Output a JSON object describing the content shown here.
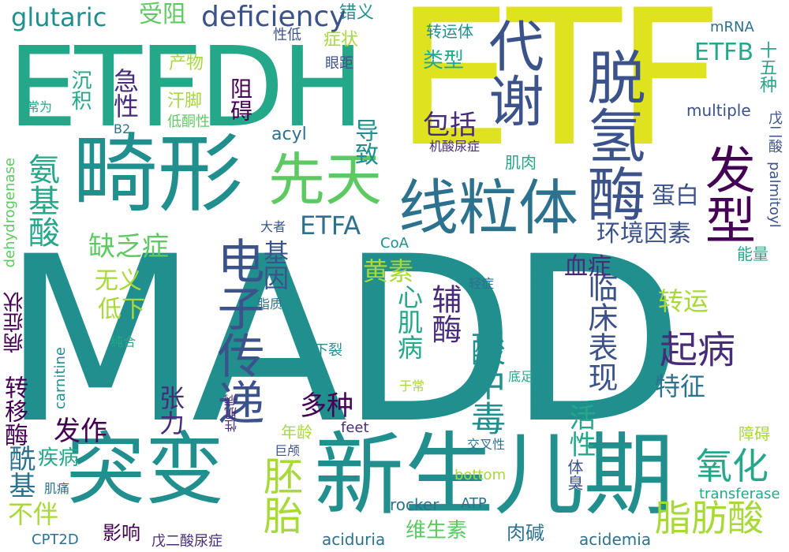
{
  "words": {
    "madd": "MADD",
    "etf": "ETF",
    "etfdh": "ETFDH",
    "jixing": "畸形",
    "xiantian": "先天",
    "xianlititi": "线粒体",
    "tuoqingmei": "脱氢酶",
    "daixie": "代谢",
    "fazuo_type": "发型",
    "tubian": "突变",
    "xinshengerqi": "新生儿期",
    "dianzichuandi": "电子传递",
    "anjisuan": "氨基酸",
    "suanzhongdu": "酸中毒",
    "qibing": "起病",
    "zhifangsuan": "脂肪酸",
    "yanghua": "氧化",
    "peitai": "胚胎",
    "xianxingbiaoxian": "临床表现",
    "xinjibing": "心肌病",
    "fumei": "辅酶",
    "huangsu": "黄素",
    "huanjing": "环境因素",
    "danbai": "蛋白",
    "xuezheng": "血症",
    "quefazheng": "缺乏症",
    "wuyi": "无义",
    "dixia": "低下",
    "jiyin": "基因",
    "baokuo": "包括",
    "daozhi": "导致",
    "jiroul": "肌肉",
    "leixing": "类型",
    "zhengzhuang": "症状",
    "shouzu": "受阻",
    "cuoyi": "错义",
    "deficiency": "deficiency",
    "glutaric": "glutaric",
    "etfb": "ETFB",
    "etfa": "ETFA",
    "multiple": "multiple",
    "acyl": "acyl",
    "zhuanyun": "转运",
    "zhuanyunti": "转运体",
    "tezheng": "特征",
    "huoxing": "活性",
    "duozhong": "多种",
    "fazuo": "发作",
    "zhangli": "张力",
    "xianji": "酰基",
    "buban": "不伴",
    "jibing": "疾病",
    "yingxiang": "影响",
    "weishengsu": "维生素",
    "rouj": "肉碱",
    "zhuanyimei": "转移酶",
    "bingzhengzhuang": "病症状",
    "dehydrogenase": "dehydrogenase",
    "carnitine": "carnitine",
    "palmitoyl": "palmitoyl",
    "wuersuan": "戊二酸",
    "shiwu": "十五种",
    "mrna": "mRNA",
    "nengliang": "能量",
    "zhangai": "障碍",
    "zhangai2": "阻碍",
    "chanwu": "产物",
    "yanju": "眼距",
    "hanjiao": "汗脚",
    "didongtixing": "低酮性",
    "jixing_acute": "急性",
    "chenji": "沉积",
    "changwei": "常为",
    "b2": "B2",
    "xingdi": "性低",
    "jisuanniaozheng": "机酸尿症",
    "dazhe": "大者",
    "coa": "CoA",
    "qingzheng": "轻症",
    "zhizhi": "脂质",
    "chunhe": "纯合",
    "xialie": "下裂",
    "yuchang": "于常",
    "dizu": "底足",
    "xingjibing": "性肌病",
    "nianling": "年龄",
    "feet": "feet",
    "julu": "巨颅",
    "jiaochaxing": "交叉性",
    "jitong": "肌痛",
    "tixiu": "体臭",
    "bottom": "bottom",
    "rocker": "rocker",
    "atp": "ATP",
    "transferase": "transferase",
    "cpt2d": "CPT2D",
    "wuersuanniaozheng": "戊二酸尿症",
    "aciduria": "aciduria",
    "acidemia": "acidemia"
  }
}
